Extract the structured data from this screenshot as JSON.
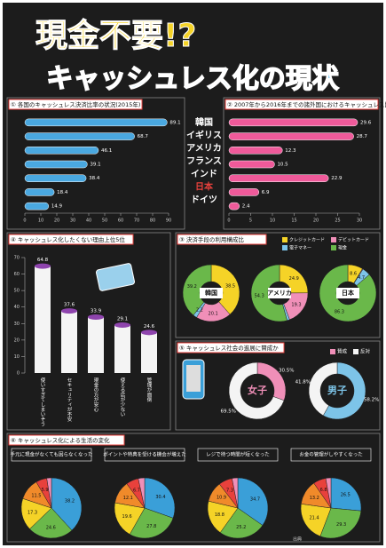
{
  "title": "現金不要!?",
  "subtitle": "キャッシュレス化の現状",
  "countries": [
    "韓国",
    "イギリス",
    "アメリカ",
    "フランス",
    "インド",
    "日本",
    "ドイツ"
  ],
  "ratio_2015": {
    "heading": "① 各国のキャッシュレス決済比率の状況(2015年)",
    "values": [
      89.1,
      68.7,
      46.1,
      39.1,
      38.4,
      18.4,
      14.9
    ],
    "ticks": [
      0,
      10,
      20,
      30,
      40,
      50,
      60,
      70,
      80,
      90
    ],
    "color": "#4aa8e0"
  },
  "change": {
    "heading": "② 2007年から2016年までの諸外国におけるキャッシュレス比率の変化",
    "values": [
      29.6,
      28.7,
      12.3,
      10.5,
      22.9,
      6.9,
      2.4
    ],
    "ticks": [
      0,
      5,
      10,
      15,
      20,
      25,
      30
    ],
    "color": "#ef5a9a"
  },
  "reasons": {
    "heading": "④ キャッシュレス化したくない理由上位5位",
    "values": [
      64.8,
      37.6,
      33.9,
      29.1,
      24.6
    ],
    "labels": [
      "使いすぎてしまいそう",
      "セキュリティが不安",
      "現金の方が安心",
      "使える店が少ない",
      "管理が面倒"
    ],
    "ticks": [
      0,
      10,
      20,
      30,
      40,
      50,
      60,
      70
    ]
  },
  "methods": {
    "heading": "③ 決済手段の利用構成比",
    "legend": [
      "クレジットカード",
      "デビットカード",
      "電子マネー",
      "現金"
    ],
    "colors": [
      "#f5d327",
      "#f08fb8",
      "#7dc4e8",
      "#6ab84a"
    ],
    "charts": [
      {
        "name": "韓国",
        "values": [
          38.5,
          20.1,
          2.2,
          39.2
        ]
      },
      {
        "name": "アメリカ",
        "values": [
          24.9,
          19.3,
          1.5,
          54.3
        ]
      },
      {
        "name": "日本",
        "values": [
          8.6,
          0.4,
          4.7,
          86.3
        ]
      }
    ]
  },
  "support": {
    "heading": "⑤ キャッシュレス社会の進展に賛成か",
    "legend": [
      "賛成",
      "反対"
    ],
    "charts": [
      {
        "name": "女子",
        "values": [
          30.5,
          69.5
        ],
        "value_labels": [
          "30.5%",
          "69.5%"
        ],
        "color": "#f08fb8"
      },
      {
        "name": "男子",
        "values": [
          58.2,
          41.8
        ],
        "value_labels": [
          "58.2%",
          "41.8%"
        ],
        "color": "#7dc4e8"
      }
    ]
  },
  "life": {
    "heading": "⑥ キャッシュレス化による生活の変化",
    "colors": [
      "#3a9fd8",
      "#6ab84a",
      "#f5d327",
      "#f08a2a",
      "#e8413c",
      "#f08fb8"
    ],
    "charts": [
      {
        "caption": "手元に現金がなくても困らなくなった",
        "values": [
          38.2,
          24.6,
          17.3,
          11.5,
          5.9,
          2.5
        ]
      },
      {
        "caption": "ポイントや特典を受ける機会が増えた",
        "values": [
          30.4,
          27.8,
          19.6,
          12.1,
          6.7,
          3.4
        ]
      },
      {
        "caption": "レジで待つ時間が短くなった",
        "values": [
          34.7,
          25.2,
          18.8,
          10.9,
          7.3,
          3.1
        ]
      },
      {
        "caption": "お金の管理がしやすくなった",
        "values": [
          26.5,
          29.3,
          21.4,
          13.2,
          6.8,
          2.8
        ]
      }
    ]
  },
  "source": "出典"
}
